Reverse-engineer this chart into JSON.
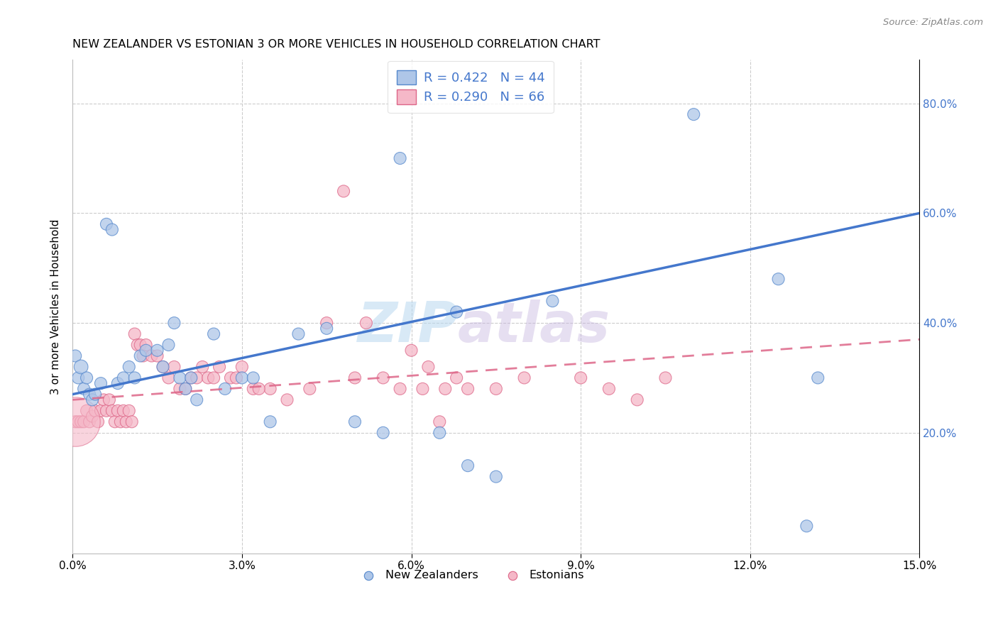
{
  "title": "NEW ZEALANDER VS ESTONIAN 3 OR MORE VEHICLES IN HOUSEHOLD CORRELATION CHART",
  "source": "Source: ZipAtlas.com",
  "ylabel": "3 or more Vehicles in Household",
  "xlabel_vals": [
    0.0,
    3.0,
    6.0,
    9.0,
    12.0,
    15.0
  ],
  "ylabel_vals": [
    20.0,
    40.0,
    60.0,
    80.0
  ],
  "xlim": [
    0.0,
    15.0
  ],
  "ylim": [
    -2.0,
    88.0
  ],
  "watermark_part1": "ZIP",
  "watermark_part2": "atlas",
  "legend1_label": "R = 0.422   N = 44",
  "legend2_label": "R = 0.290   N = 66",
  "nz_color": "#aec6e8",
  "nz_edge_color": "#5588cc",
  "nz_line_color": "#4477cc",
  "est_color": "#f5b8c8",
  "est_edge_color": "#dd6688",
  "est_line_color": "#dd6688",
  "nz_x": [
    0.05,
    0.1,
    0.15,
    0.2,
    0.25,
    0.3,
    0.35,
    0.4,
    0.5,
    0.6,
    0.7,
    0.8,
    0.9,
    1.0,
    1.1,
    1.2,
    1.3,
    1.5,
    1.6,
    1.7,
    1.8,
    1.9,
    2.0,
    2.1,
    2.2,
    2.5,
    2.7,
    3.0,
    3.2,
    3.5,
    4.0,
    4.5,
    5.0,
    5.5,
    5.8,
    6.5,
    7.0,
    7.5,
    8.5,
    11.0,
    12.5,
    13.0,
    13.2,
    6.8
  ],
  "nz_y": [
    34.0,
    30.0,
    32.0,
    28.0,
    30.0,
    27.0,
    26.0,
    27.0,
    29.0,
    58.0,
    57.0,
    29.0,
    30.0,
    32.0,
    30.0,
    34.0,
    35.0,
    35.0,
    32.0,
    36.0,
    40.0,
    30.0,
    28.0,
    30.0,
    26.0,
    38.0,
    28.0,
    30.0,
    30.0,
    22.0,
    38.0,
    39.0,
    22.0,
    20.0,
    70.0,
    20.0,
    14.0,
    12.0,
    44.0,
    78.0,
    48.0,
    3.0,
    30.0,
    42.0
  ],
  "nz_sizes": [
    150,
    150,
    200,
    150,
    150,
    150,
    150,
    150,
    150,
    150,
    150,
    150,
    150,
    150,
    150,
    150,
    150,
    150,
    150,
    150,
    150,
    150,
    150,
    150,
    150,
    150,
    150,
    150,
    150,
    150,
    150,
    150,
    150,
    150,
    150,
    150,
    150,
    150,
    150,
    150,
    150,
    150,
    150,
    150
  ],
  "est_x": [
    0.05,
    0.1,
    0.15,
    0.2,
    0.25,
    0.3,
    0.35,
    0.4,
    0.45,
    0.5,
    0.55,
    0.6,
    0.65,
    0.7,
    0.75,
    0.8,
    0.85,
    0.9,
    0.95,
    1.0,
    1.05,
    1.1,
    1.15,
    1.2,
    1.25,
    1.3,
    1.4,
    1.5,
    1.6,
    1.7,
    1.8,
    1.9,
    2.0,
    2.1,
    2.2,
    2.3,
    2.4,
    2.5,
    2.6,
    2.8,
    3.0,
    3.2,
    3.5,
    3.8,
    4.2,
    4.5,
    5.0,
    5.2,
    5.5,
    6.0,
    6.3,
    6.5,
    6.8,
    7.0,
    7.5,
    8.0,
    9.0,
    9.5,
    10.0,
    10.5,
    2.9,
    5.8,
    4.8,
    6.2,
    3.3,
    6.6
  ],
  "est_y": [
    22.0,
    22.0,
    22.0,
    22.0,
    24.0,
    22.0,
    23.0,
    24.0,
    22.0,
    24.0,
    26.0,
    24.0,
    26.0,
    24.0,
    22.0,
    24.0,
    22.0,
    24.0,
    22.0,
    24.0,
    22.0,
    38.0,
    36.0,
    36.0,
    34.0,
    36.0,
    34.0,
    34.0,
    32.0,
    30.0,
    32.0,
    28.0,
    28.0,
    30.0,
    30.0,
    32.0,
    30.0,
    30.0,
    32.0,
    30.0,
    32.0,
    28.0,
    28.0,
    26.0,
    28.0,
    40.0,
    30.0,
    40.0,
    30.0,
    35.0,
    32.0,
    22.0,
    30.0,
    28.0,
    28.0,
    30.0,
    30.0,
    28.0,
    26.0,
    30.0,
    30.0,
    28.0,
    64.0,
    28.0,
    28.0,
    28.0
  ],
  "est_sizes": [
    150,
    150,
    150,
    150,
    150,
    150,
    150,
    150,
    150,
    150,
    150,
    150,
    150,
    150,
    150,
    150,
    150,
    150,
    150,
    150,
    150,
    150,
    150,
    150,
    150,
    150,
    150,
    150,
    150,
    150,
    150,
    150,
    150,
    150,
    150,
    150,
    150,
    150,
    150,
    150,
    150,
    150,
    150,
    150,
    150,
    150,
    150,
    150,
    150,
    150,
    150,
    150,
    150,
    150,
    150,
    150,
    150,
    150,
    150,
    150,
    150,
    150,
    150,
    150,
    150,
    150
  ],
  "est_large_x": [
    0.05
  ],
  "est_large_y": [
    22.0
  ],
  "est_large_size": [
    2500
  ],
  "background_color": "#ffffff",
  "grid_color": "#cccccc",
  "nz_trend": [
    27.0,
    60.0
  ],
  "est_trend": [
    26.0,
    37.0
  ]
}
